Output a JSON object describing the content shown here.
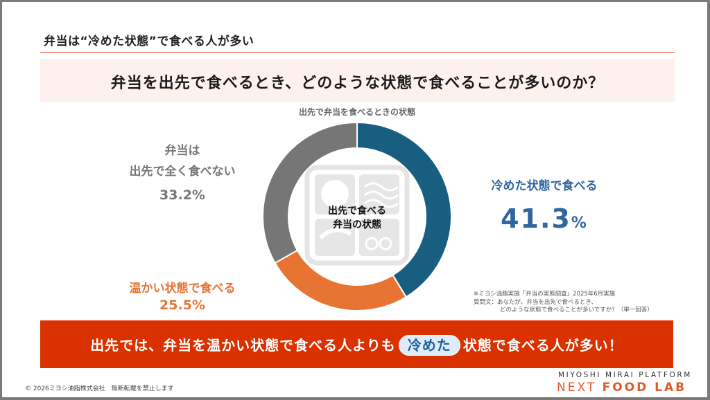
{
  "slide": {
    "heading": "弁当は“冷めた状態”で食べる人が多い",
    "question": "弁当を出先で食べるとき、どのような状態で食べることが多いのか？",
    "colors": {
      "accent_red": "#d93100",
      "rule": "#e05a2b",
      "question_band": "#fdf1ee",
      "blue": "#185e80",
      "blue_text": "#2f66a0",
      "orange": "#e87433",
      "grey": "#767676"
    }
  },
  "chart_data": {
    "type": "pie",
    "variant": "donut",
    "title": "出先で弁当を食べるときの状態",
    "center_label": [
      "出先で食べる",
      "弁当の状態"
    ],
    "categories": [
      "冷めた状態で食べる",
      "温かい状態で食べる",
      "弁当は出先で全く食べない"
    ],
    "values": [
      41.3,
      25.5,
      33.2
    ],
    "unit": "%",
    "colors": [
      "#185e80",
      "#e87433",
      "#767676"
    ],
    "start_angle_deg": 0,
    "direction": "clockwise",
    "legend": "none (direct labels)"
  },
  "labels": {
    "blue": {
      "name": "冷めた状態で食べる",
      "value": "41.3",
      "unit": "%"
    },
    "orange": {
      "name": "温かい状態で食べる",
      "value": "25.5%"
    },
    "grey": {
      "name_line1": "弁当は",
      "name_line2": "出先で全く食べない",
      "value": "33.2%"
    }
  },
  "center": {
    "line1": "出先で食べる",
    "line2": "弁当の状態"
  },
  "center_icon": "bento-box-icon",
  "note": {
    "line1": "※ミヨシ油脂実施「弁当の実態調査」2025年6月実施",
    "line2": "質問文：あなたが、弁当を出先で食べるとき、",
    "line3": "どのような状態で食べることが多いですか？（単一回答）"
  },
  "banner": {
    "before": "出先では、弁当を温かい状態で食べる人よりも",
    "highlight": "冷めた",
    "after": "状態で食べる人が多い！"
  },
  "footer": {
    "copyright": "© 2026ミヨシ油脂株式会社　無断転載を禁止します",
    "brand_top": "MIYOSHI MIRAI PLATFORM",
    "brand_bottom_light": "NEXT ",
    "brand_bottom_bold": "FOOD LAB"
  }
}
